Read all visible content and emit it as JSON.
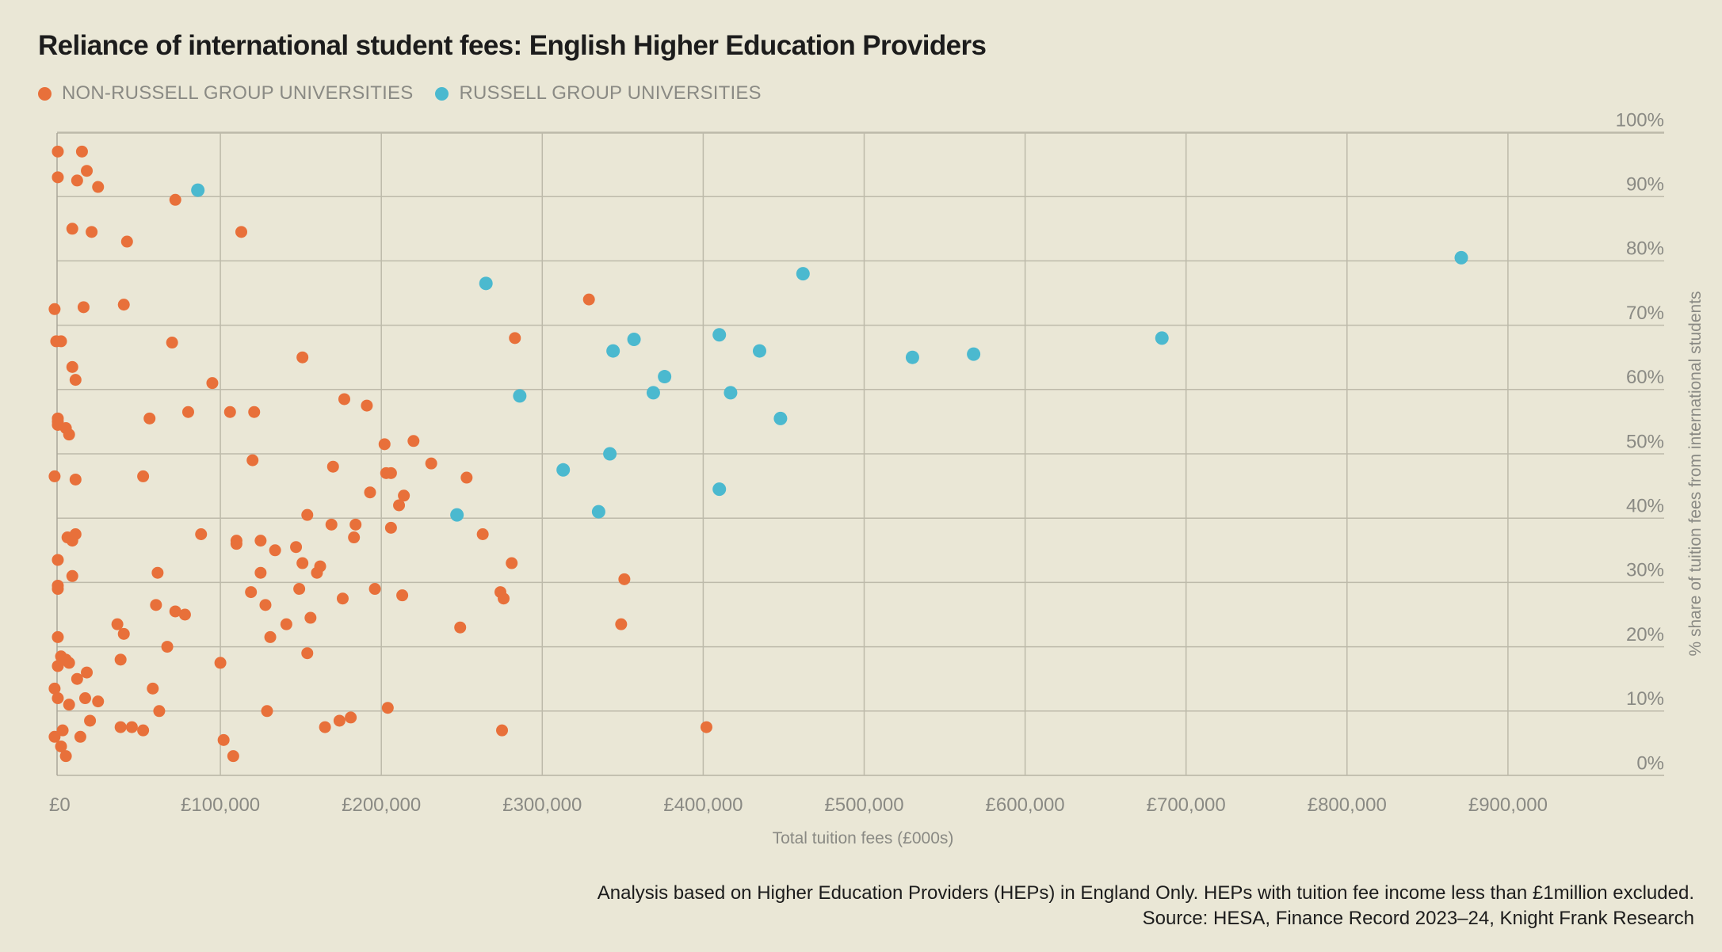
{
  "title": "Reliance of international student fees: English Higher Education Providers",
  "legend": [
    {
      "label": "NON-RUSSELL GROUP UNIVERSITIES",
      "color": "#e8703a"
    },
    {
      "label": "RUSSELL GROUP UNIVERSITIES",
      "color": "#4bb9cf"
    }
  ],
  "footnote": {
    "line1": "Analysis based on Higher Education Providers (HEPs) in England Only. HEPs with tuition fee income less than £1million excluded.",
    "line2": "Source: HESA, Finance Record 2023–24, Knight Frank Research"
  },
  "chart_data": {
    "type": "scatter",
    "title": "Reliance of international student fees: English Higher Education Providers",
    "xlabel": "Total tuition fees (£000s)",
    "ylabel": "% share of tuition fees from international students",
    "xlim": [
      -2000,
      1000000
    ],
    "ylim": [
      0,
      100
    ],
    "x_ticks": [
      {
        "value": 0,
        "label": "£0"
      },
      {
        "value": 100000,
        "label": "£100,000"
      },
      {
        "value": 200000,
        "label": "£200,000"
      },
      {
        "value": 300000,
        "label": "£300,000"
      },
      {
        "value": 400000,
        "label": "£400,000"
      },
      {
        "value": 500000,
        "label": "£500,000"
      },
      {
        "value": 600000,
        "label": "£600,000"
      },
      {
        "value": 700000,
        "label": "£700,000"
      },
      {
        "value": 800000,
        "label": "£800,000"
      },
      {
        "value": 900000,
        "label": "£900,000"
      }
    ],
    "y_ticks": [
      {
        "value": 0,
        "label": "0%"
      },
      {
        "value": 10,
        "label": "10%"
      },
      {
        "value": 20,
        "label": "20%"
      },
      {
        "value": 30,
        "label": "30%"
      },
      {
        "value": 40,
        "label": "40%"
      },
      {
        "value": 50,
        "label": "50%"
      },
      {
        "value": 60,
        "label": "60%"
      },
      {
        "value": 70,
        "label": "70%"
      },
      {
        "value": 80,
        "label": "80%"
      },
      {
        "value": 90,
        "label": "90%"
      },
      {
        "value": 100,
        "label": "100%"
      }
    ],
    "y_axis_position": "right",
    "grid": true,
    "series": [
      {
        "name": "NON-RUSSELL GROUP UNIVERSITIES",
        "color": "#e8703a",
        "points": [
          [
            -1000,
            97
          ],
          [
            14000,
            97
          ],
          [
            -1000,
            93
          ],
          [
            11000,
            92.5
          ],
          [
            17000,
            94
          ],
          [
            24000,
            91.5
          ],
          [
            72000,
            89.5
          ],
          [
            8000,
            85
          ],
          [
            20000,
            84.5
          ],
          [
            42000,
            83
          ],
          [
            113000,
            84.5
          ],
          [
            -3000,
            72.5
          ],
          [
            15000,
            72.8
          ],
          [
            40000,
            73.2
          ],
          [
            -2000,
            67.5
          ],
          [
            1000,
            67.5
          ],
          [
            70000,
            67.3
          ],
          [
            151000,
            65
          ],
          [
            283000,
            68
          ],
          [
            329000,
            74
          ],
          [
            8000,
            63.5
          ],
          [
            10000,
            61.5
          ],
          [
            95000,
            61
          ],
          [
            177000,
            58.5
          ],
          [
            191000,
            57.5
          ],
          [
            -1000,
            55.5
          ],
          [
            -1000,
            55
          ],
          [
            -1000,
            54.5
          ],
          [
            4000,
            54
          ],
          [
            6000,
            53
          ],
          [
            56000,
            55.5
          ],
          [
            80000,
            56.5
          ],
          [
            106000,
            56.5
          ],
          [
            121000,
            56.5
          ],
          [
            120000,
            49
          ],
          [
            202000,
            51.5
          ],
          [
            220000,
            52
          ],
          [
            -3000,
            46.5
          ],
          [
            10000,
            46
          ],
          [
            52000,
            46.5
          ],
          [
            170000,
            48
          ],
          [
            203000,
            47
          ],
          [
            206000,
            47
          ],
          [
            231000,
            48.5
          ],
          [
            253000,
            46.3
          ],
          [
            193000,
            44
          ],
          [
            214000,
            43.5
          ],
          [
            154000,
            40.5
          ],
          [
            169000,
            39
          ],
          [
            184000,
            39
          ],
          [
            211000,
            42
          ],
          [
            206000,
            38.5
          ],
          [
            263000,
            37.5
          ],
          [
            88000,
            37.5
          ],
          [
            110000,
            36.5
          ],
          [
            110000,
            36
          ],
          [
            125000,
            36.5
          ],
          [
            134000,
            35
          ],
          [
            147000,
            35.5
          ],
          [
            151000,
            33
          ],
          [
            162000,
            32.5
          ],
          [
            160000,
            31.5
          ],
          [
            183000,
            37
          ],
          [
            5000,
            37
          ],
          [
            8000,
            36.5
          ],
          [
            10000,
            37.5
          ],
          [
            -1000,
            33.5
          ],
          [
            8000,
            31
          ],
          [
            61000,
            31.5
          ],
          [
            125000,
            31.5
          ],
          [
            119000,
            28.5
          ],
          [
            128000,
            26.5
          ],
          [
            149000,
            29
          ],
          [
            176000,
            27.5
          ],
          [
            196000,
            29
          ],
          [
            213000,
            28
          ],
          [
            274000,
            28.5
          ],
          [
            276000,
            27.5
          ],
          [
            281000,
            33
          ],
          [
            351000,
            30.5
          ],
          [
            -1000,
            29.5
          ],
          [
            -1000,
            29
          ],
          [
            60000,
            26.5
          ],
          [
            72000,
            25.5
          ],
          [
            78000,
            25
          ],
          [
            36000,
            23.5
          ],
          [
            40000,
            22
          ],
          [
            141000,
            23.5
          ],
          [
            131000,
            21.5
          ],
          [
            156000,
            24.5
          ],
          [
            249000,
            23
          ],
          [
            349000,
            23.5
          ],
          [
            -1000,
            21.5
          ],
          [
            1000,
            18.5
          ],
          [
            4000,
            18
          ],
          [
            6000,
            17.5
          ],
          [
            -1000,
            17
          ],
          [
            38000,
            18
          ],
          [
            67000,
            20
          ],
          [
            100000,
            17.5
          ],
          [
            154000,
            19
          ],
          [
            17000,
            16
          ],
          [
            11000,
            15
          ],
          [
            -3000,
            13.5
          ],
          [
            58000,
            13.5
          ],
          [
            -1000,
            12
          ],
          [
            6000,
            11
          ],
          [
            16000,
            12
          ],
          [
            24000,
            11.5
          ],
          [
            62000,
            10
          ],
          [
            129000,
            10
          ],
          [
            204000,
            10.5
          ],
          [
            19000,
            8.5
          ],
          [
            45000,
            7.5
          ],
          [
            38000,
            7.5
          ],
          [
            52000,
            7
          ],
          [
            165000,
            7.5
          ],
          [
            174000,
            8.5
          ],
          [
            181000,
            9
          ],
          [
            275000,
            7
          ],
          [
            402000,
            7.5
          ],
          [
            -3000,
            6
          ],
          [
            2000,
            7
          ],
          [
            102000,
            5.5
          ],
          [
            13000,
            6
          ],
          [
            1000,
            4.5
          ],
          [
            4000,
            3
          ],
          [
            108000,
            3
          ]
        ]
      },
      {
        "name": "RUSSELL GROUP UNIVERSITIES",
        "color": "#4bb9cf",
        "points": [
          [
            86000,
            91
          ],
          [
            871000,
            80.5
          ],
          [
            462000,
            78
          ],
          [
            265000,
            76.5
          ],
          [
            410000,
            68.5
          ],
          [
            357000,
            67.8
          ],
          [
            344000,
            66
          ],
          [
            435000,
            66
          ],
          [
            530000,
            65
          ],
          [
            568000,
            65.5
          ],
          [
            685000,
            68
          ],
          [
            376000,
            62
          ],
          [
            369000,
            59.5
          ],
          [
            417000,
            59.5
          ],
          [
            286000,
            59
          ],
          [
            448000,
            55.5
          ],
          [
            342000,
            50
          ],
          [
            313000,
            47.5
          ],
          [
            410000,
            44.5
          ],
          [
            335000,
            41
          ],
          [
            247000,
            40.5
          ]
        ]
      }
    ]
  }
}
